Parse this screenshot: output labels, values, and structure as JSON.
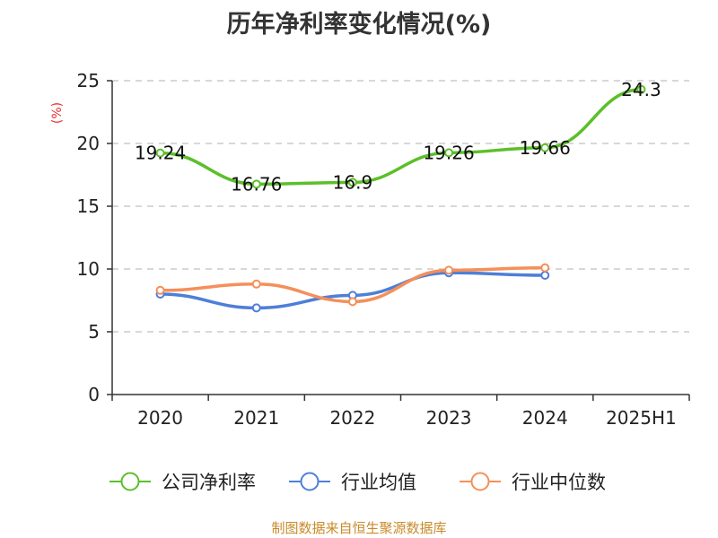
{
  "chart_data": {
    "type": "line",
    "title": "历年净利率变化情况(%)",
    "ylabel": "(%)",
    "categories": [
      "2020",
      "2021",
      "2022",
      "2023",
      "2024",
      "2025H1"
    ],
    "ylim": [
      0,
      25
    ],
    "yticks": [
      0,
      5,
      10,
      15,
      20,
      25
    ],
    "grid": "horizontal dashed",
    "legend_position": "bottom",
    "series": [
      {
        "name": "公司净利率",
        "color": "#5cbf2a",
        "values": [
          19.24,
          16.76,
          16.9,
          19.26,
          19.66,
          24.3
        ],
        "labels": [
          "19.24",
          "16.76",
          "16.9",
          "19.26",
          "19.66",
          "24.3"
        ]
      },
      {
        "name": "行业均值",
        "color": "#4e7fd8",
        "values": [
          8.0,
          6.9,
          7.9,
          9.7,
          9.5,
          null
        ]
      },
      {
        "name": "行业中位数",
        "color": "#f58f5a",
        "values": [
          8.3,
          8.8,
          7.4,
          9.9,
          10.1,
          null
        ]
      }
    ]
  },
  "source": {
    "text": "制图数据来自恒生聚源数据库",
    "color": "#c98a2a"
  }
}
